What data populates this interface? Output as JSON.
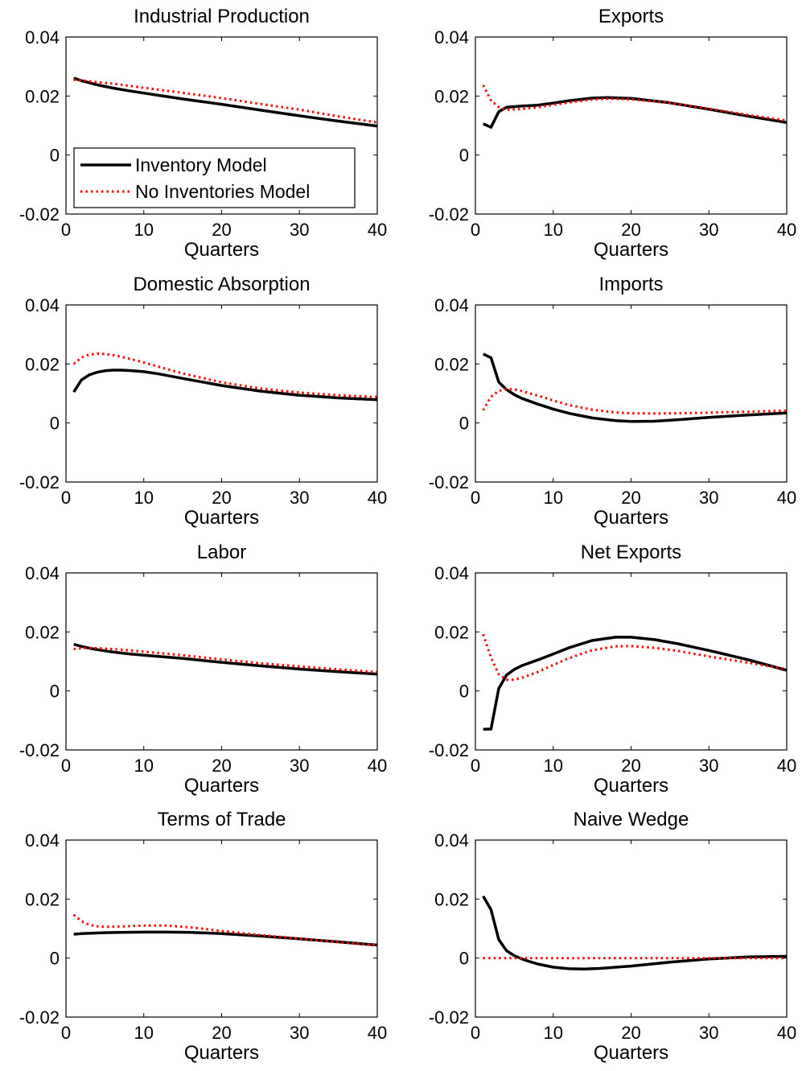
{
  "chart_data": {
    "type": "line",
    "legend": {
      "placement": "inside-lower-left of first panel",
      "entries": [
        "Inventory Model",
        "No Inventories Model"
      ]
    },
    "series_styles": [
      {
        "name": "Inventory Model",
        "color": "#000000",
        "style": "solid"
      },
      {
        "name": "No Inventories Model",
        "color": "#ff0000",
        "style": "dotted"
      }
    ],
    "panels": [
      {
        "title": "Industrial Production",
        "xlabel": "Quarters",
        "xlim": [
          0,
          40
        ],
        "ylim": [
          -0.02,
          0.04
        ],
        "xticks": [
          "0",
          "10",
          "20",
          "30",
          "40"
        ],
        "yticks": [
          "-0.02",
          "0",
          "0.02",
          "0.04"
        ],
        "x": [
          1,
          2,
          3,
          4,
          6,
          8,
          10,
          12,
          15,
          20,
          25,
          30,
          35,
          40
        ],
        "series": [
          {
            "name": "Inventory Model",
            "values": [
              0.0261,
              0.0252,
              0.0245,
              0.0238,
              0.0227,
              0.0218,
              0.021,
              0.0202,
              0.019,
              0.0172,
              0.0152,
              0.0133,
              0.0115,
              0.0098
            ]
          },
          {
            "name": "No Inventories Model",
            "values": [
              0.0255,
              0.0253,
              0.025,
              0.0247,
              0.0242,
              0.0235,
              0.0228,
              0.0221,
              0.0211,
              0.0193,
              0.0173,
              0.0154,
              0.0131,
              0.011
            ]
          }
        ]
      },
      {
        "title": "Exports",
        "xlabel": "Quarters",
        "xlim": [
          0,
          40
        ],
        "ylim": [
          -0.02,
          0.04
        ],
        "xticks": [
          "0",
          "10",
          "20",
          "30",
          "40"
        ],
        "yticks": [
          "-0.02",
          "0",
          "0.02",
          "0.04"
        ],
        "x": [
          1,
          2,
          3,
          4,
          6,
          8,
          10,
          12,
          15,
          17,
          20,
          25,
          30,
          35,
          40
        ],
        "series": [
          {
            "name": "Inventory Model",
            "values": [
              0.0106,
              0.0094,
              0.0147,
              0.0162,
              0.0166,
              0.0169,
              0.0176,
              0.0184,
              0.0193,
              0.0195,
              0.0192,
              0.0177,
              0.0155,
              0.0132,
              0.011
            ]
          },
          {
            "name": "No Inventories Model",
            "values": [
              0.0237,
              0.0185,
              0.0163,
              0.0153,
              0.0156,
              0.0162,
              0.017,
              0.0178,
              0.0188,
              0.0191,
              0.0189,
              0.0177,
              0.0157,
              0.0136,
              0.0117
            ]
          }
        ]
      },
      {
        "title": "Domestic Absorption",
        "xlabel": "Quarters",
        "xlim": [
          0,
          40
        ],
        "ylim": [
          -0.02,
          0.04
        ],
        "xticks": [
          "0",
          "10",
          "20",
          "30",
          "40"
        ],
        "yticks": [
          "-0.02",
          "0",
          "0.02",
          "0.04"
        ],
        "x": [
          1,
          2,
          3,
          4,
          5,
          6,
          7,
          8,
          10,
          12,
          15,
          20,
          25,
          30,
          35,
          40
        ],
        "series": [
          {
            "name": "Inventory Model",
            "values": [
              0.0105,
              0.0146,
              0.0163,
              0.0172,
              0.0177,
              0.0179,
              0.0179,
              0.0178,
              0.0174,
              0.0166,
              0.0151,
              0.0127,
              0.0108,
              0.0094,
              0.0085,
              0.0079
            ]
          },
          {
            "name": "No Inventories Model",
            "values": [
              0.02,
              0.0222,
              0.0232,
              0.0235,
              0.0234,
              0.023,
              0.0225,
              0.0219,
              0.0205,
              0.019,
              0.0168,
              0.0138,
              0.0117,
              0.0103,
              0.0094,
              0.0088
            ]
          }
        ]
      },
      {
        "title": "Imports",
        "xlabel": "Quarters",
        "xlim": [
          0,
          40
        ],
        "ylim": [
          -0.02,
          0.04
        ],
        "xticks": [
          "0",
          "10",
          "20",
          "30",
          "40"
        ],
        "yticks": [
          "-0.02",
          "0",
          "0.02",
          "0.04"
        ],
        "x": [
          1,
          2,
          3,
          4,
          5,
          6,
          8,
          10,
          12,
          15,
          18,
          20,
          23,
          26,
          30,
          35,
          40
        ],
        "series": [
          {
            "name": "Inventory Model",
            "values": [
              0.0234,
              0.0221,
              0.0139,
              0.0113,
              0.0096,
              0.0083,
              0.0064,
              0.0047,
              0.0033,
              0.0017,
              0.0008,
              0.0005,
              0.0006,
              0.0011,
              0.0019,
              0.0027,
              0.0034
            ]
          },
          {
            "name": "No Inventories Model",
            "values": [
              0.0043,
              0.0089,
              0.0109,
              0.0115,
              0.0114,
              0.0108,
              0.0093,
              0.0076,
              0.0061,
              0.0045,
              0.0036,
              0.0033,
              0.0032,
              0.0033,
              0.0035,
              0.0038,
              0.0042
            ]
          }
        ]
      },
      {
        "title": "Labor",
        "xlabel": "Quarters",
        "xlim": [
          0,
          40
        ],
        "ylim": [
          -0.02,
          0.04
        ],
        "xticks": [
          "0",
          "10",
          "20",
          "30",
          "40"
        ],
        "yticks": [
          "-0.02",
          "0",
          "0.02",
          "0.04"
        ],
        "x": [
          1,
          2,
          3,
          4,
          6,
          8,
          10,
          15,
          20,
          25,
          30,
          35,
          40
        ],
        "series": [
          {
            "name": "Inventory Model",
            "values": [
              0.0158,
              0.0151,
              0.0145,
              0.014,
              0.0132,
              0.0126,
              0.0121,
              0.011,
              0.0097,
              0.0085,
              0.0074,
              0.0065,
              0.0057
            ]
          },
          {
            "name": "No Inventories Model",
            "values": [
              0.0142,
              0.0145,
              0.0146,
              0.0145,
              0.0142,
              0.0138,
              0.0133,
              0.0121,
              0.0107,
              0.0094,
              0.0083,
              0.0073,
              0.0064
            ]
          }
        ]
      },
      {
        "title": "Net Exports",
        "xlabel": "Quarters",
        "xlim": [
          0,
          40
        ],
        "ylim": [
          -0.02,
          0.04
        ],
        "xticks": [
          "0",
          "10",
          "20",
          "30",
          "40"
        ],
        "yticks": [
          "-0.02",
          "0",
          "0.02",
          "0.04"
        ],
        "x": [
          1,
          2,
          3,
          4,
          5,
          6,
          8,
          10,
          12,
          15,
          18,
          20,
          23,
          26,
          30,
          35,
          40
        ],
        "series": [
          {
            "name": "Inventory Model",
            "values": [
              -0.013,
              -0.0129,
              0.0008,
              0.0054,
              0.0073,
              0.0086,
              0.0105,
              0.0125,
              0.0146,
              0.0171,
              0.0182,
              0.0182,
              0.0174,
              0.016,
              0.0137,
              0.0106,
              0.007
            ]
          },
          {
            "name": "No Inventories Model",
            "values": [
              0.0192,
              0.0113,
              0.0057,
              0.0038,
              0.0038,
              0.0045,
              0.0064,
              0.0088,
              0.0111,
              0.0138,
              0.0151,
              0.0152,
              0.0146,
              0.0136,
              0.0117,
              0.0096,
              0.0074
            ]
          }
        ]
      },
      {
        "title": "Terms of Trade",
        "xlabel": "Quarters",
        "xlim": [
          0,
          40
        ],
        "ylim": [
          -0.02,
          0.04
        ],
        "xticks": [
          "0",
          "10",
          "20",
          "30",
          "40"
        ],
        "yticks": [
          "-0.02",
          "0",
          "0.02",
          "0.04"
        ],
        "x": [
          1,
          2,
          3,
          4,
          5,
          7,
          10,
          13,
          16,
          20,
          25,
          30,
          35,
          40
        ],
        "series": [
          {
            "name": "Inventory Model",
            "values": [
              0.0081,
              0.0083,
              0.0084,
              0.0085,
              0.0086,
              0.0087,
              0.0088,
              0.0088,
              0.0087,
              0.0083,
              0.0075,
              0.0065,
              0.0055,
              0.0044
            ]
          },
          {
            "name": "No Inventories Model",
            "values": [
              0.0147,
              0.0125,
              0.0113,
              0.0108,
              0.0106,
              0.0107,
              0.011,
              0.011,
              0.0104,
              0.0092,
              0.0078,
              0.0066,
              0.0054,
              0.0043
            ]
          }
        ]
      },
      {
        "title": "Naive Wedge",
        "xlabel": "Quarters",
        "xlim": [
          0,
          40
        ],
        "ylim": [
          -0.02,
          0.04
        ],
        "xticks": [
          "0",
          "10",
          "20",
          "30",
          "40"
        ],
        "yticks": [
          "-0.02",
          "0",
          "0.02",
          "0.04"
        ],
        "x": [
          1,
          2,
          3,
          4,
          5,
          6,
          7,
          8,
          10,
          12,
          14,
          16,
          20,
          25,
          30,
          35,
          40
        ],
        "series": [
          {
            "name": "Inventory Model",
            "values": [
              0.021,
              0.0164,
              0.0063,
              0.0025,
              0.0008,
              -0.0003,
              -0.0012,
              -0.002,
              -0.0031,
              -0.0036,
              -0.0037,
              -0.0035,
              -0.0027,
              -0.0014,
              -0.0003,
              0.0004,
              0.0006
            ]
          },
          {
            "name": "No Inventories Model",
            "values": [
              0,
              0,
              0,
              0,
              0,
              0,
              0,
              0,
              0,
              0,
              0,
              0,
              0,
              0,
              0,
              0,
              0
            ]
          }
        ]
      }
    ]
  }
}
